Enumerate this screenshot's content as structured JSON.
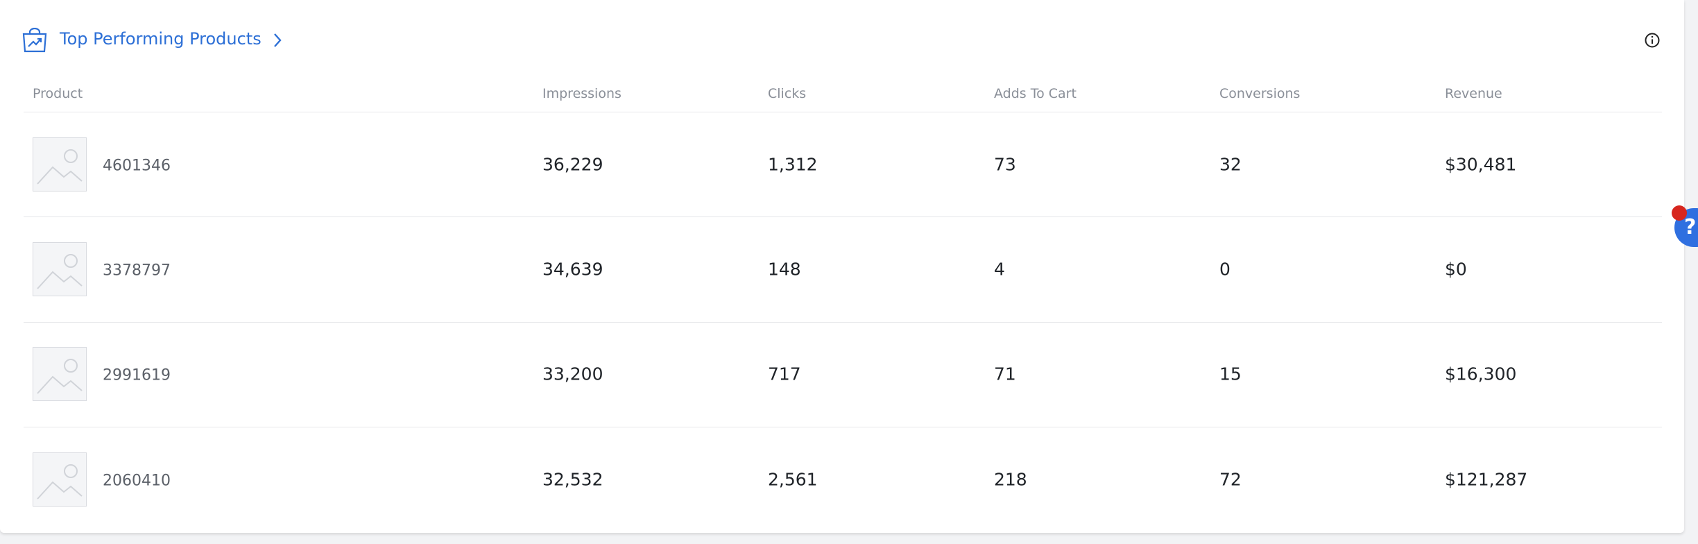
{
  "header": {
    "title": "Top Performing Products"
  },
  "table": {
    "columns": [
      "Product",
      "Impressions",
      "Clicks",
      "Adds To Cart",
      "Conversions",
      "Revenue"
    ],
    "rows": [
      [
        "4601346",
        "36,229",
        "1,312",
        "73",
        "32",
        "$30,481"
      ],
      [
        "3378797",
        "34,639",
        "148",
        "4",
        "0",
        "$0"
      ],
      [
        "2991619",
        "33,200",
        "717",
        "71",
        "15",
        "$16,300"
      ],
      [
        "2060410",
        "32,532",
        "2,561",
        "218",
        "72",
        "$121,287"
      ]
    ]
  },
  "help_button": "?"
}
